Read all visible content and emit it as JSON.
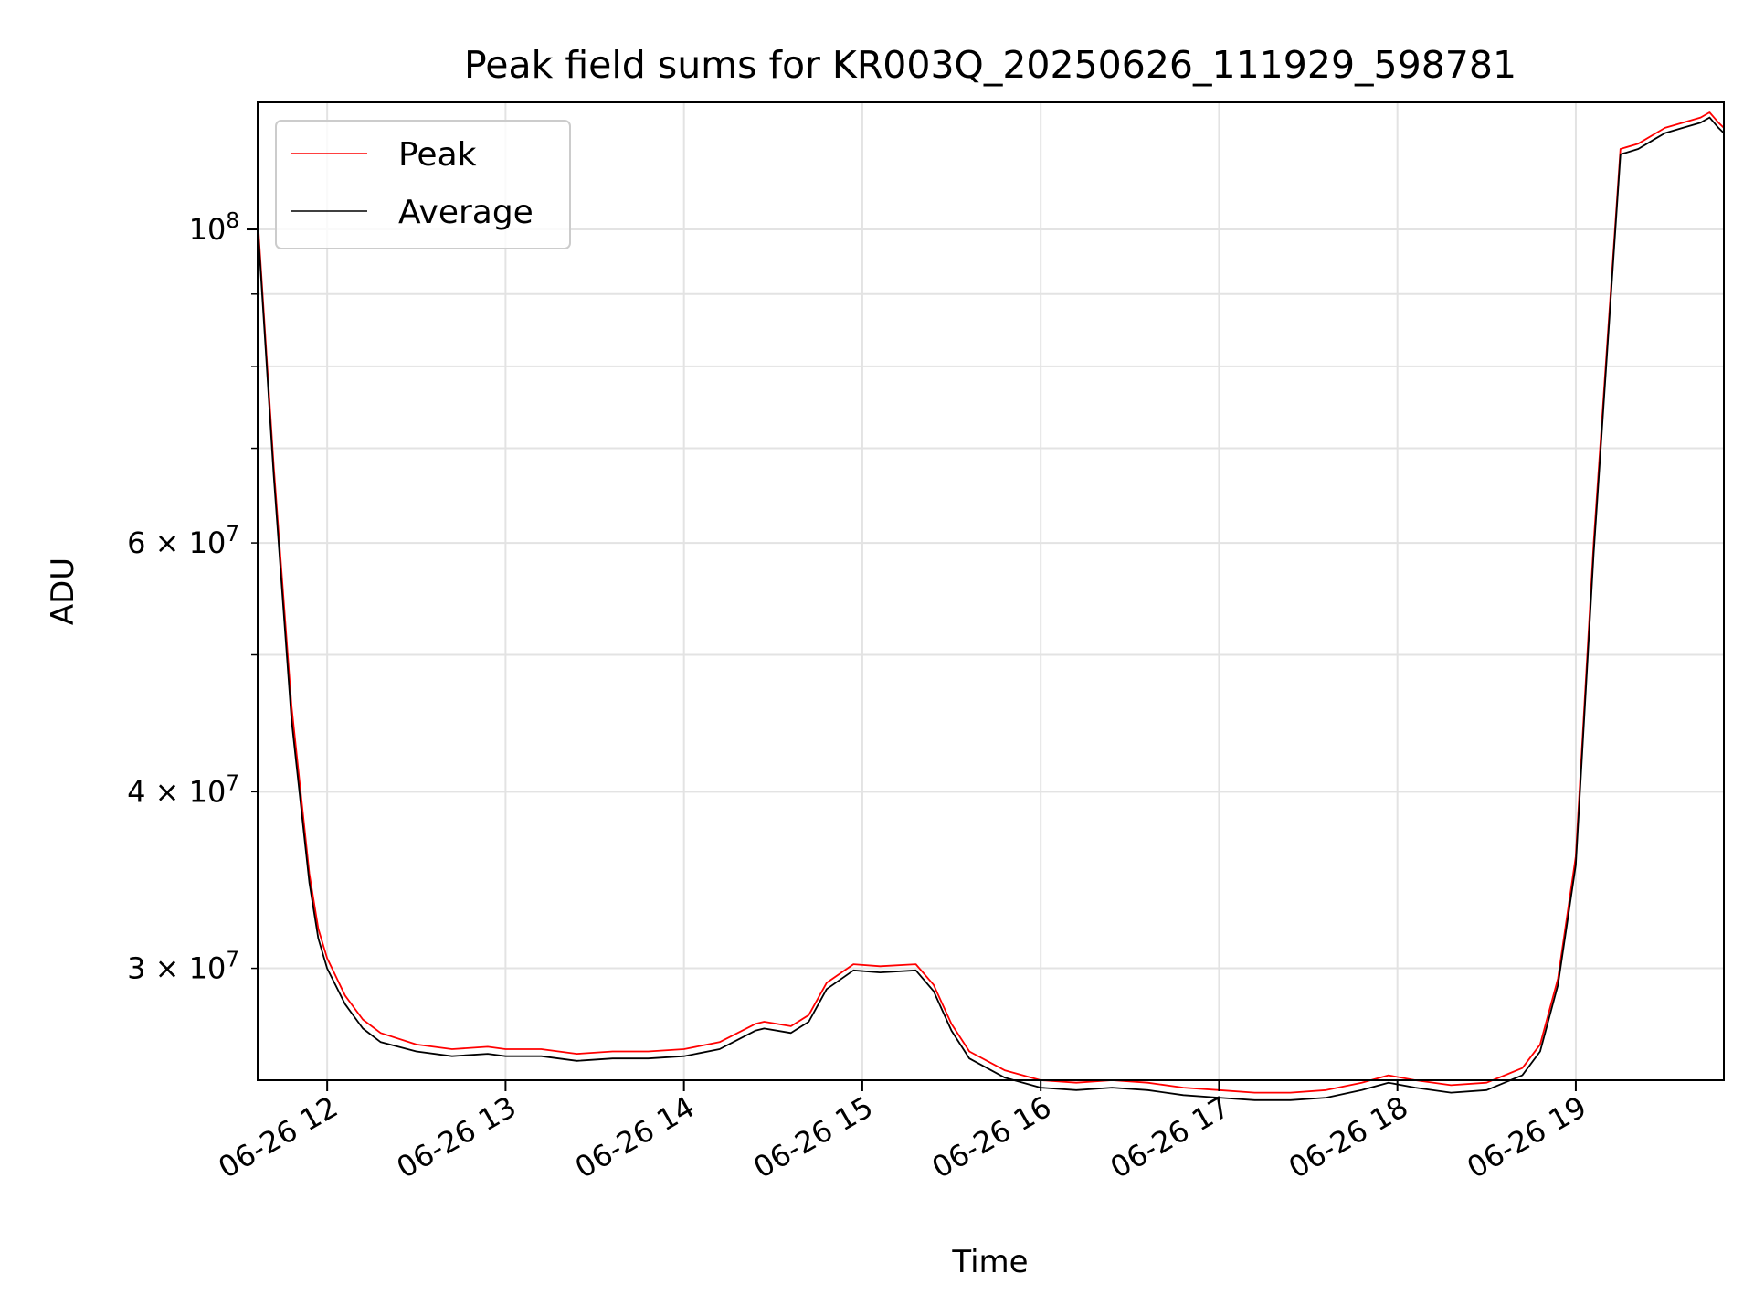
{
  "chart_data": {
    "type": "line",
    "title": "Peak field sums for KR003Q_20250626_111929_598781",
    "xlabel": "Time",
    "ylabel": "ADU",
    "y_scale": "log",
    "grid": true,
    "legend_position": "top-left",
    "x_unit": "hour of 2025-06-26",
    "xlim": [
      11.61,
      19.83
    ],
    "ylim": [
      25000000,
      123000000
    ],
    "x_tick_values": [
      12,
      13,
      14,
      15,
      16,
      17,
      18,
      19
    ],
    "x_tick_labels": [
      "06-26 12",
      "06-26 13",
      "06-26 14",
      "06-26 15",
      "06-26 16",
      "06-26 17",
      "06-26 18",
      "06-26 19"
    ],
    "y_major_ticks": [
      {
        "value": 100000000,
        "mantissa": "",
        "base": "10",
        "exp": "8"
      }
    ],
    "y_minor_ticks": [
      {
        "value": 30000000,
        "mantissa": "3",
        "base": "10",
        "exp": "7"
      },
      {
        "value": 40000000,
        "mantissa": "4",
        "base": "10",
        "exp": "7"
      },
      {
        "value": 60000000,
        "mantissa": "6",
        "base": "10",
        "exp": "7"
      }
    ],
    "y_minor_gridlines": [
      30000000,
      40000000,
      50000000,
      60000000,
      70000000,
      80000000,
      90000000
    ],
    "series": [
      {
        "name": "Peak",
        "color": "#ff0000",
        "x": [
          11.61,
          11.7,
          11.8,
          11.9,
          11.95,
          12.0,
          12.1,
          12.2,
          12.3,
          12.5,
          12.7,
          12.9,
          13.0,
          13.2,
          13.4,
          13.6,
          13.8,
          14.0,
          14.2,
          14.4,
          14.45,
          14.6,
          14.7,
          14.8,
          14.95,
          15.1,
          15.3,
          15.4,
          15.5,
          15.6,
          15.8,
          16.0,
          16.2,
          16.4,
          16.6,
          16.8,
          17.0,
          17.2,
          17.4,
          17.6,
          17.8,
          17.95,
          18.1,
          18.3,
          18.5,
          18.7,
          18.8,
          18.9,
          19.0,
          19.1,
          19.2,
          19.25,
          19.35,
          19.45,
          19.5,
          19.6,
          19.7,
          19.75,
          19.8,
          19.83
        ],
        "y": [
          102000000,
          68000000,
          46000000,
          35000000,
          32000000,
          30500000,
          28700000,
          27600000,
          27000000,
          26500000,
          26300000,
          26400000,
          26300000,
          26300000,
          26100000,
          26200000,
          26200000,
          26300000,
          26600000,
          27400000,
          27500000,
          27300000,
          27800000,
          29300000,
          30200000,
          30100000,
          30200000,
          29200000,
          27400000,
          26200000,
          25400000,
          25000000,
          24900000,
          25000000,
          24900000,
          24700000,
          24600000,
          24500000,
          24500000,
          24600000,
          24900000,
          25200000,
          25000000,
          24800000,
          24900000,
          25500000,
          26500000,
          29500000,
          36000000,
          60000000,
          92000000,
          114000000,
          115000000,
          117000000,
          118000000,
          119000000,
          120000000,
          121000000,
          119000000,
          118000000
        ]
      },
      {
        "name": "Average",
        "color": "#000000",
        "x": [
          11.61,
          11.7,
          11.8,
          11.9,
          11.95,
          12.0,
          12.1,
          12.2,
          12.3,
          12.5,
          12.7,
          12.9,
          13.0,
          13.2,
          13.4,
          13.6,
          13.8,
          14.0,
          14.2,
          14.4,
          14.45,
          14.6,
          14.7,
          14.8,
          14.95,
          15.1,
          15.3,
          15.4,
          15.5,
          15.6,
          15.8,
          16.0,
          16.2,
          16.4,
          16.6,
          16.8,
          17.0,
          17.2,
          17.4,
          17.6,
          17.8,
          17.95,
          18.1,
          18.3,
          18.5,
          18.7,
          18.8,
          18.9,
          19.0,
          19.1,
          19.2,
          19.25,
          19.35,
          19.45,
          19.5,
          19.6,
          19.7,
          19.75,
          19.8,
          19.83
        ],
        "y": [
          101000000,
          67000000,
          45000000,
          34500000,
          31500000,
          30000000,
          28300000,
          27200000,
          26600000,
          26200000,
          26000000,
          26100000,
          26000000,
          26000000,
          25800000,
          25900000,
          25900000,
          26000000,
          26300000,
          27100000,
          27200000,
          27000000,
          27500000,
          29000000,
          29900000,
          29800000,
          29900000,
          28900000,
          27100000,
          25900000,
          25100000,
          24700000,
          24600000,
          24700000,
          24600000,
          24400000,
          24300000,
          24200000,
          24200000,
          24300000,
          24600000,
          24900000,
          24700000,
          24500000,
          24600000,
          25200000,
          26200000,
          29200000,
          35500000,
          59000000,
          91000000,
          113000000,
          114000000,
          116000000,
          117000000,
          118000000,
          119000000,
          120000000,
          118000000,
          117000000
        ]
      }
    ]
  }
}
